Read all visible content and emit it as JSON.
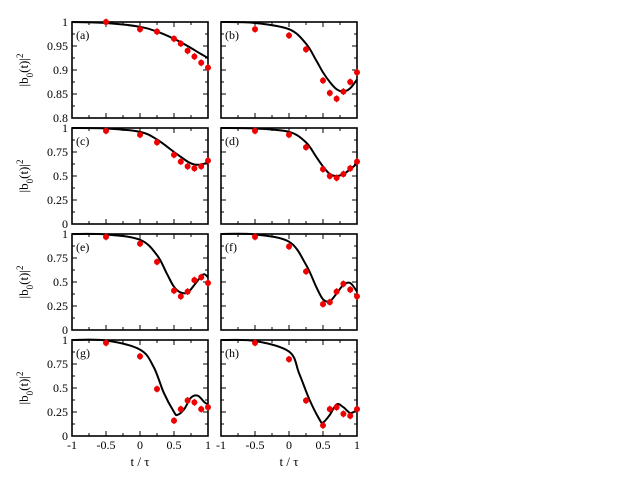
{
  "chart_data": [
    {
      "id": "a",
      "type": "scatter",
      "panel_label": "(a)",
      "ylim": [
        0.8,
        1.0
      ],
      "xlim": [
        -1,
        1
      ],
      "yticks": [
        "0.8",
        "0.85",
        "0.9",
        "0.95",
        "1"
      ],
      "points": [
        [
          -0.5,
          1.0
        ],
        [
          0.0,
          0.985
        ],
        [
          0.25,
          0.98
        ],
        [
          0.5,
          0.965
        ],
        [
          0.6,
          0.955
        ],
        [
          0.7,
          0.94
        ],
        [
          0.8,
          0.928
        ],
        [
          0.9,
          0.915
        ],
        [
          1.0,
          0.905
        ]
      ],
      "curve": [
        [
          -1,
          1.0
        ],
        [
          -0.5,
          0.998
        ],
        [
          0,
          0.99
        ],
        [
          0.25,
          0.98
        ],
        [
          0.5,
          0.965
        ],
        [
          0.7,
          0.95
        ],
        [
          0.9,
          0.933
        ],
        [
          1.0,
          0.925
        ]
      ]
    },
    {
      "id": "b",
      "type": "scatter",
      "panel_label": "(b)",
      "ylim": [
        0.8,
        1.0
      ],
      "xlim": [
        -1,
        1
      ],
      "yticks": [
        "0.8",
        "0.85",
        "0.9",
        "0.95",
        "1"
      ],
      "points": [
        [
          -0.5,
          0.985
        ],
        [
          0.0,
          0.972
        ],
        [
          0.25,
          0.943
        ],
        [
          0.5,
          0.878
        ],
        [
          0.6,
          0.852
        ],
        [
          0.7,
          0.84
        ],
        [
          0.8,
          0.855
        ],
        [
          0.9,
          0.875
        ],
        [
          1.0,
          0.895
        ]
      ],
      "curve": [
        [
          -1,
          1.0
        ],
        [
          -0.5,
          0.998
        ],
        [
          0,
          0.985
        ],
        [
          0.25,
          0.955
        ],
        [
          0.4,
          0.92
        ],
        [
          0.5,
          0.895
        ],
        [
          0.6,
          0.875
        ],
        [
          0.7,
          0.86
        ],
        [
          0.8,
          0.855
        ],
        [
          0.9,
          0.862
        ],
        [
          1.0,
          0.88
        ]
      ]
    },
    {
      "id": "c",
      "type": "scatter",
      "panel_label": "(c)",
      "ylim": [
        0,
        1
      ],
      "xlim": [
        -1,
        1
      ],
      "yticks": [
        "0",
        "0.25",
        "0.5",
        "0.75",
        "1"
      ],
      "points": [
        [
          -0.5,
          0.97
        ],
        [
          0.0,
          0.93
        ],
        [
          0.25,
          0.85
        ],
        [
          0.5,
          0.72
        ],
        [
          0.6,
          0.65
        ],
        [
          0.7,
          0.6
        ],
        [
          0.8,
          0.58
        ],
        [
          0.9,
          0.6
        ],
        [
          1.0,
          0.66
        ]
      ],
      "curve": [
        [
          -1,
          1.0
        ],
        [
          -0.5,
          0.995
        ],
        [
          0,
          0.96
        ],
        [
          0.25,
          0.88
        ],
        [
          0.5,
          0.75
        ],
        [
          0.6,
          0.7
        ],
        [
          0.7,
          0.65
        ],
        [
          0.8,
          0.62
        ],
        [
          0.9,
          0.62
        ],
        [
          1.0,
          0.64
        ]
      ]
    },
    {
      "id": "d",
      "type": "scatter",
      "panel_label": "(d)",
      "ylim": [
        0,
        1
      ],
      "xlim": [
        -1,
        1
      ],
      "yticks": [
        "0",
        "0.25",
        "0.5",
        "0.75",
        "1"
      ],
      "points": [
        [
          -0.5,
          0.97
        ],
        [
          0.0,
          0.93
        ],
        [
          0.25,
          0.8
        ],
        [
          0.5,
          0.57
        ],
        [
          0.6,
          0.5
        ],
        [
          0.7,
          0.48
        ],
        [
          0.8,
          0.52
        ],
        [
          0.9,
          0.58
        ],
        [
          1.0,
          0.65
        ]
      ],
      "curve": [
        [
          -1,
          1.0
        ],
        [
          -0.5,
          0.995
        ],
        [
          0,
          0.96
        ],
        [
          0.25,
          0.85
        ],
        [
          0.4,
          0.7
        ],
        [
          0.5,
          0.6
        ],
        [
          0.6,
          0.52
        ],
        [
          0.7,
          0.5
        ],
        [
          0.8,
          0.52
        ],
        [
          0.9,
          0.57
        ],
        [
          1.0,
          0.63
        ]
      ]
    },
    {
      "id": "e",
      "type": "scatter",
      "panel_label": "(e)",
      "ylim": [
        0,
        1
      ],
      "xlim": [
        -1,
        1
      ],
      "yticks": [
        "0",
        "0.25",
        "0.5",
        "0.75",
        "1"
      ],
      "points": [
        [
          -0.5,
          0.97
        ],
        [
          0.0,
          0.9
        ],
        [
          0.25,
          0.71
        ],
        [
          0.5,
          0.41
        ],
        [
          0.6,
          0.35
        ],
        [
          0.7,
          0.4
        ],
        [
          0.8,
          0.52
        ],
        [
          0.9,
          0.55
        ],
        [
          1.0,
          0.49
        ]
      ],
      "curve": [
        [
          -1,
          1.0
        ],
        [
          -0.5,
          0.995
        ],
        [
          0,
          0.94
        ],
        [
          0.25,
          0.78
        ],
        [
          0.4,
          0.58
        ],
        [
          0.5,
          0.45
        ],
        [
          0.6,
          0.39
        ],
        [
          0.7,
          0.39
        ],
        [
          0.8,
          0.47
        ],
        [
          0.9,
          0.56
        ],
        [
          0.95,
          0.58
        ],
        [
          1.0,
          0.55
        ]
      ]
    },
    {
      "id": "f",
      "type": "scatter",
      "panel_label": "(f)",
      "ylim": [
        0,
        1
      ],
      "xlim": [
        -1,
        1
      ],
      "yticks": [
        "0",
        "0.25",
        "0.5",
        "0.75",
        "1"
      ],
      "points": [
        [
          -0.5,
          0.97
        ],
        [
          0.0,
          0.87
        ],
        [
          0.25,
          0.61
        ],
        [
          0.5,
          0.27
        ],
        [
          0.6,
          0.29
        ],
        [
          0.7,
          0.4
        ],
        [
          0.8,
          0.48
        ],
        [
          0.9,
          0.42
        ],
        [
          1.0,
          0.35
        ]
      ],
      "curve": [
        [
          -1,
          1.0
        ],
        [
          -0.5,
          0.995
        ],
        [
          0,
          0.92
        ],
        [
          0.25,
          0.68
        ],
        [
          0.4,
          0.45
        ],
        [
          0.5,
          0.32
        ],
        [
          0.6,
          0.3
        ],
        [
          0.7,
          0.38
        ],
        [
          0.8,
          0.47
        ],
        [
          0.9,
          0.49
        ],
        [
          1.0,
          0.4
        ]
      ]
    },
    {
      "id": "g",
      "type": "scatter",
      "panel_label": "(g)",
      "ylim": [
        0,
        1
      ],
      "xlim": [
        -1,
        1
      ],
      "yticks": [
        "0",
        "0.25",
        "0.5",
        "0.75",
        "1"
      ],
      "points": [
        [
          -0.5,
          0.97
        ],
        [
          0.0,
          0.83
        ],
        [
          0.25,
          0.49
        ],
        [
          0.5,
          0.16
        ],
        [
          0.6,
          0.28
        ],
        [
          0.7,
          0.37
        ],
        [
          0.8,
          0.35
        ],
        [
          0.9,
          0.28
        ],
        [
          1.0,
          0.3
        ]
      ],
      "curve": [
        [
          -1,
          1.0
        ],
        [
          -0.5,
          0.995
        ],
        [
          0,
          0.9
        ],
        [
          0.2,
          0.72
        ],
        [
          0.35,
          0.45
        ],
        [
          0.5,
          0.25
        ],
        [
          0.55,
          0.22
        ],
        [
          0.65,
          0.28
        ],
        [
          0.75,
          0.4
        ],
        [
          0.85,
          0.42
        ],
        [
          0.95,
          0.35
        ],
        [
          1.0,
          0.33
        ]
      ]
    },
    {
      "id": "h",
      "type": "scatter",
      "panel_label": "(h)",
      "ylim": [
        0,
        1
      ],
      "xlim": [
        -1,
        1
      ],
      "yticks": [
        "0",
        "0.25",
        "0.5",
        "0.75",
        "1"
      ],
      "points": [
        [
          -0.5,
          0.97
        ],
        [
          0.0,
          0.8
        ],
        [
          0.25,
          0.37
        ],
        [
          0.5,
          0.11
        ],
        [
          0.6,
          0.28
        ],
        [
          0.7,
          0.3
        ],
        [
          0.8,
          0.23
        ],
        [
          0.9,
          0.21
        ],
        [
          1.0,
          0.28
        ]
      ],
      "curve": [
        [
          -1,
          1.0
        ],
        [
          -0.5,
          0.99
        ],
        [
          0,
          0.88
        ],
        [
          0.15,
          0.65
        ],
        [
          0.3,
          0.38
        ],
        [
          0.45,
          0.17
        ],
        [
          0.5,
          0.14
        ],
        [
          0.6,
          0.22
        ],
        [
          0.7,
          0.33
        ],
        [
          0.8,
          0.3
        ],
        [
          0.9,
          0.24
        ],
        [
          1.0,
          0.27
        ]
      ]
    }
  ],
  "axes": {
    "x_tick_labels": [
      "-1",
      "-0.5",
      "0",
      "0.5",
      "1"
    ],
    "xlabel": "t / τ",
    "ylabel_base": "|b",
    "ylabel_sub": "0",
    "ylabel_mid": "(t)|",
    "ylabel_sup": "2"
  },
  "colors": {
    "points": "#ee0000",
    "curve": "#000000",
    "axes": "#000000"
  }
}
